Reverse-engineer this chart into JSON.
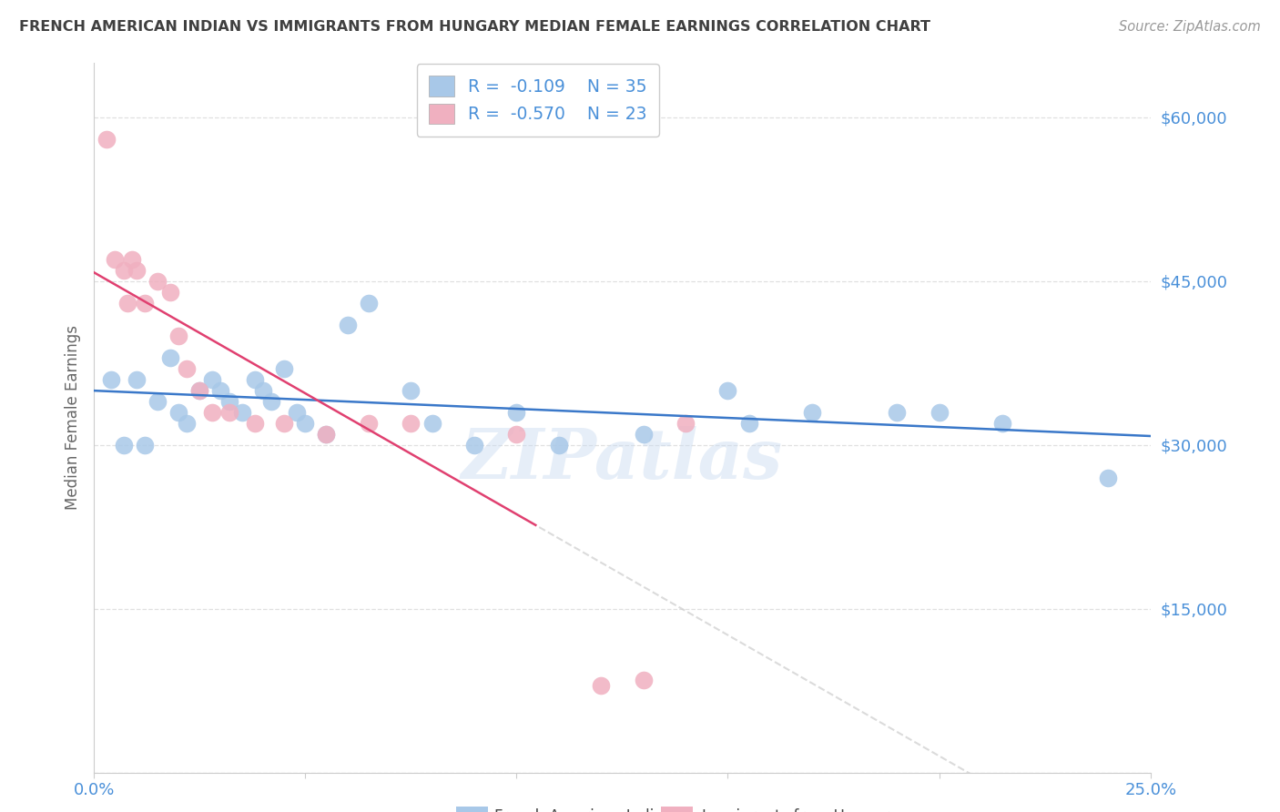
{
  "title": "FRENCH AMERICAN INDIAN VS IMMIGRANTS FROM HUNGARY MEDIAN FEMALE EARNINGS CORRELATION CHART",
  "source_text": "Source: ZipAtlas.com",
  "ylabel": "Median Female Earnings",
  "xlim": [
    0.0,
    0.25
  ],
  "ylim": [
    0,
    65000
  ],
  "yticks": [
    0,
    15000,
    30000,
    45000,
    60000
  ],
  "ytick_labels": [
    "",
    "$15,000",
    "$30,000",
    "$45,000",
    "$60,000"
  ],
  "xticks": [
    0.0,
    0.05,
    0.1,
    0.15,
    0.2,
    0.25
  ],
  "xtick_labels": [
    "0.0%",
    "",
    "",
    "",
    "",
    "25.0%"
  ],
  "watermark": "ZIPatlas",
  "legend_r1_val": "-0.109",
  "legend_n1_val": "35",
  "legend_r2_val": "-0.570",
  "legend_n2_val": "23",
  "label1": "French American Indians",
  "label2": "Immigrants from Hungary",
  "color1": "#a8c8e8",
  "color2": "#f0b0c0",
  "line_color1": "#3a78c9",
  "line_color2": "#e04070",
  "axis_color": "#4a90d9",
  "title_color": "#404040",
  "source_color": "#999999",
  "grid_color": "#e0e0e0",
  "blue_x": [
    0.004,
    0.007,
    0.01,
    0.012,
    0.015,
    0.018,
    0.02,
    0.022,
    0.025,
    0.028,
    0.03,
    0.032,
    0.035,
    0.038,
    0.04,
    0.042,
    0.045,
    0.048,
    0.05,
    0.055,
    0.06,
    0.065,
    0.075,
    0.08,
    0.09,
    0.1,
    0.11,
    0.13,
    0.15,
    0.155,
    0.17,
    0.19,
    0.2,
    0.215,
    0.24
  ],
  "blue_y": [
    36000,
    30000,
    36000,
    30000,
    34000,
    38000,
    33000,
    32000,
    35000,
    36000,
    35000,
    34000,
    33000,
    36000,
    35000,
    34000,
    37000,
    33000,
    32000,
    31000,
    41000,
    43000,
    35000,
    32000,
    30000,
    33000,
    30000,
    31000,
    35000,
    32000,
    33000,
    33000,
    33000,
    32000,
    27000
  ],
  "pink_x": [
    0.003,
    0.005,
    0.007,
    0.008,
    0.009,
    0.01,
    0.012,
    0.015,
    0.018,
    0.02,
    0.022,
    0.025,
    0.028,
    0.032,
    0.038,
    0.045,
    0.055,
    0.065,
    0.075,
    0.1,
    0.12,
    0.13,
    0.14
  ],
  "pink_y": [
    58000,
    47000,
    46000,
    43000,
    47000,
    46000,
    43000,
    45000,
    44000,
    40000,
    37000,
    35000,
    33000,
    33000,
    32000,
    32000,
    31000,
    32000,
    32000,
    31000,
    8000,
    8500,
    32000
  ]
}
